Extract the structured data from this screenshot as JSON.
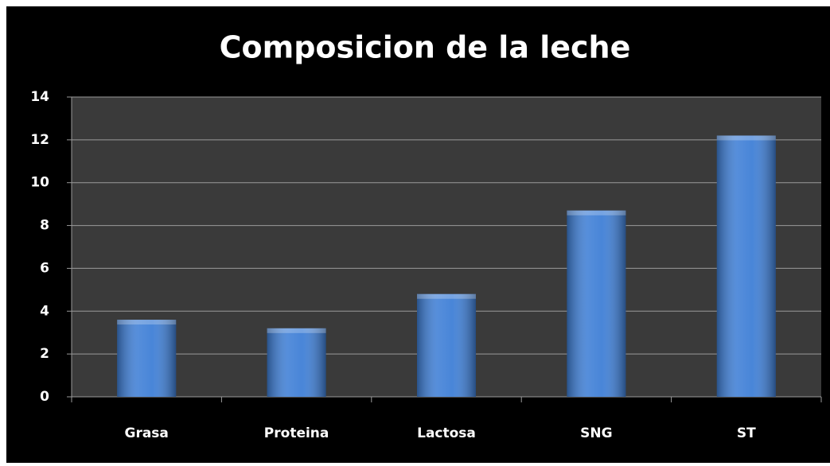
{
  "chart_data": {
    "type": "bar",
    "title": "Composicion de la leche",
    "categories": [
      "Grasa",
      "Proteina",
      "Lactosa",
      "SNG",
      "ST"
    ],
    "values": [
      3.6,
      3.2,
      4.8,
      8.7,
      12.2
    ],
    "color": "#3f7fd6",
    "ylim": [
      0,
      14
    ],
    "yticks": [
      0,
      2,
      4,
      6,
      8,
      10,
      12,
      14
    ],
    "grid": true
  }
}
